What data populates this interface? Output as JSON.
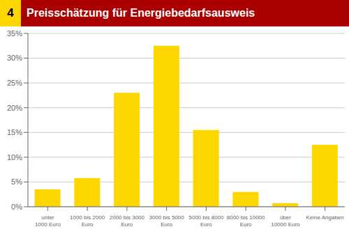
{
  "chart_data": {
    "type": "bar",
    "title": "Preisschätzung für Energiebedarfsausweis",
    "annotations": [
      "4"
    ],
    "categories": [
      "unter\n1000 Euro",
      "1000 bis 2000\nEuro",
      "2000 bis 3000\nEuro",
      "3000 bis 5000\nEuro",
      "5000 bis 8000\nEuro",
      "8000 bis 10000\nEuro",
      "über\n10000 Euro",
      "Keine Angaben"
    ],
    "values": [
      3.5,
      5.8,
      23.0,
      32.5,
      15.5,
      3.0,
      0.7,
      12.5
    ],
    "color": "#FFD700",
    "ylim": [
      0,
      35
    ],
    "yticks": [
      {
        "value": 0,
        "label": "0%"
      },
      {
        "value": 5,
        "label": "5%"
      },
      {
        "value": 10,
        "label": "10%"
      },
      {
        "value": 15,
        "label": "15%"
      },
      {
        "value": 20,
        "label": "20%"
      },
      {
        "value": 25,
        "label": "25%"
      },
      {
        "value": 30,
        "label": "30%"
      },
      {
        "value": 35,
        "label": "35%"
      }
    ],
    "grid": true
  }
}
